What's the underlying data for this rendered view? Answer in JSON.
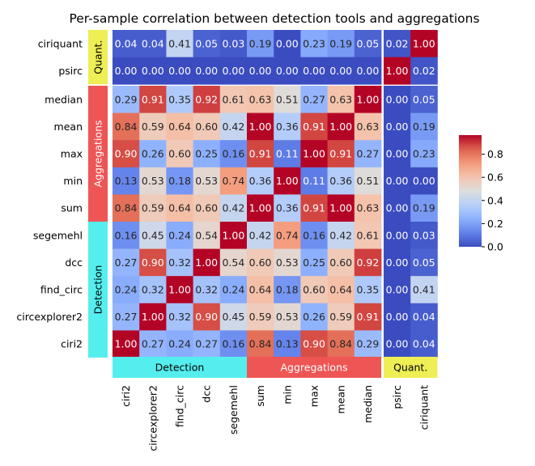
{
  "chart_data": {
    "type": "heatmap",
    "title": "Per-sample correlation between detection tools and aggregations",
    "rows": [
      "ciriquant",
      "psirc",
      "median",
      "mean",
      "max",
      "min",
      "sum",
      "segemehl",
      "dcc",
      "find_circ",
      "circexplorer2",
      "ciri2"
    ],
    "columns": [
      "ciri2",
      "circexplorer2",
      "find_circ",
      "dcc",
      "segemehl",
      "sum",
      "min",
      "max",
      "mean",
      "median",
      "psirc",
      "ciriquant"
    ],
    "row_groups": [
      {
        "label": "Quant.",
        "count": 2,
        "color": "#eeee55"
      },
      {
        "label": "Aggregations",
        "count": 5,
        "color": "#ee5555"
      },
      {
        "label": "Detection",
        "count": 5,
        "color": "#55eeee"
      }
    ],
    "column_groups": [
      {
        "label": "Detection",
        "count": 5,
        "color": "#55eeee"
      },
      {
        "label": "Aggregations",
        "count": 5,
        "color": "#ee5555"
      },
      {
        "label": "Quant.",
        "count": 2,
        "color": "#eeee55"
      }
    ],
    "values": [
      [
        0.04,
        0.04,
        0.41,
        0.05,
        0.03,
        0.19,
        -0.0,
        0.23,
        0.19,
        0.05,
        0.02,
        1.0
      ],
      [
        0.0,
        -0.0,
        0.0,
        0.0,
        0.0,
        0.0,
        -0.0,
        0.0,
        0.0,
        0.0,
        1.0,
        0.02
      ],
      [
        0.29,
        0.91,
        0.35,
        0.92,
        0.61,
        0.63,
        0.51,
        0.27,
        0.63,
        1.0,
        0.0,
        0.05
      ],
      [
        0.84,
        0.59,
        0.64,
        0.6,
        0.42,
        1.0,
        0.36,
        0.91,
        1.0,
        0.63,
        0.0,
        0.19
      ],
      [
        0.9,
        0.26,
        0.6,
        0.25,
        0.16,
        0.91,
        0.11,
        1.0,
        0.91,
        0.27,
        0.0,
        0.23
      ],
      [
        0.13,
        0.53,
        0.18,
        0.53,
        0.74,
        0.36,
        1.0,
        0.11,
        0.36,
        0.51,
        -0.0,
        -0.0
      ],
      [
        0.84,
        0.59,
        0.64,
        0.6,
        0.42,
        1.0,
        0.36,
        0.91,
        1.0,
        0.63,
        0.0,
        0.19
      ],
      [
        0.16,
        0.45,
        0.24,
        0.54,
        1.0,
        0.42,
        0.74,
        0.16,
        0.42,
        0.61,
        0.0,
        0.03
      ],
      [
        0.27,
        0.9,
        0.32,
        1.0,
        0.54,
        0.6,
        0.53,
        0.25,
        0.6,
        0.92,
        0.0,
        0.05
      ],
      [
        0.24,
        0.32,
        1.0,
        0.32,
        0.24,
        0.64,
        0.18,
        0.6,
        0.64,
        0.35,
        0.0,
        0.41
      ],
      [
        0.27,
        1.0,
        0.32,
        0.9,
        0.45,
        0.59,
        0.53,
        0.26,
        0.59,
        0.91,
        -0.0,
        0.04
      ],
      [
        1.0,
        0.27,
        0.24,
        0.27,
        0.16,
        0.84,
        0.13,
        0.9,
        0.84,
        0.29,
        0.0,
        0.04
      ]
    ],
    "color_scale": {
      "name": "coolwarm",
      "vmin": 0.0,
      "vmax": 1.0
    },
    "colorbar_ticks": [
      0.0,
      0.2,
      0.4,
      0.6,
      0.8
    ],
    "legend_placement": "right",
    "grid": false
  }
}
